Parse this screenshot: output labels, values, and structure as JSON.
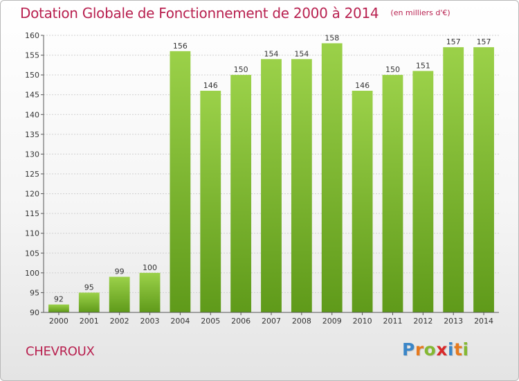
{
  "header": {
    "title": "Dotation Globale de Fonctionnement de 2000 à 2014",
    "subtitle": "(en milliers d'€)"
  },
  "commune": "CHEVROUX",
  "logo": {
    "text": "Proxiti",
    "letters": [
      {
        "ch": "P",
        "color": "#3a86c8"
      },
      {
        "ch": "r",
        "color": "#e67a1f"
      },
      {
        "ch": "o",
        "color": "#84b832"
      },
      {
        "ch": "x",
        "color": "#d8292a"
      },
      {
        "ch": "i",
        "color": "#3a86c8"
      },
      {
        "ch": "t",
        "color": "#e67a1f"
      },
      {
        "ch": "i",
        "color": "#84b832"
      }
    ]
  },
  "chart_data": {
    "type": "bar",
    "title": "Dotation Globale de Fonctionnement de 2000 à 2014",
    "subtitle": "(en milliers d'€)",
    "xlabel": "",
    "ylabel": "",
    "categories": [
      "2000",
      "2001",
      "2002",
      "2003",
      "2004",
      "2005",
      "2006",
      "2007",
      "2008",
      "2009",
      "2010",
      "2011",
      "2012",
      "2013",
      "2014"
    ],
    "values": [
      92,
      95,
      99,
      100,
      156,
      146,
      150,
      154,
      154,
      158,
      146,
      150,
      151,
      157,
      157
    ],
    "ylim": [
      90,
      160
    ],
    "yticks": [
      90,
      95,
      100,
      105,
      110,
      115,
      120,
      125,
      130,
      135,
      140,
      145,
      150,
      155,
      160
    ],
    "grid": true,
    "bar_color_top": "#9bd149",
    "bar_color_bottom": "#5f9a1a"
  }
}
